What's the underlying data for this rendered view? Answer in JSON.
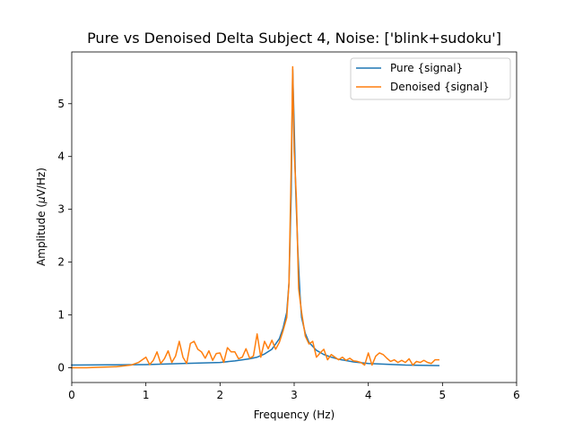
{
  "chart_data": {
    "type": "line",
    "title": "Pure vs Denoised Delta Subject 4, Noise: ['blink+sudoku']",
    "xlabel": "Frequency (Hz)",
    "ylabel_pre": "Amplitude (",
    "ylabel_mu": "μ",
    "ylabel_post": "V/Hz)",
    "xlim": [
      0,
      6
    ],
    "ylim": [
      -0.28,
      5.98
    ],
    "xticks": [
      0,
      1,
      2,
      3,
      4,
      5,
      6
    ],
    "xtick_labels": [
      "0",
      "1",
      "2",
      "3",
      "4",
      "5",
      "6"
    ],
    "yticks": [
      0,
      1,
      2,
      3,
      4,
      5
    ],
    "ytick_labels": [
      "0",
      "1",
      "2",
      "3",
      "4",
      "5"
    ],
    "grid": false,
    "legend_position": "top-right",
    "series": [
      {
        "name": "Pure {signal}",
        "color": "#1f77b4",
        "x": [
          0.0,
          0.5,
          1.0,
          1.5,
          2.0,
          2.2,
          2.4,
          2.5,
          2.6,
          2.7,
          2.8,
          2.85,
          2.9,
          2.93,
          2.96,
          2.98,
          3.0,
          3.02,
          3.05,
          3.08,
          3.1,
          3.15,
          3.2,
          3.3,
          3.4,
          3.5,
          3.6,
          3.8,
          4.0,
          4.5,
          4.95
        ],
        "y": [
          0.05,
          0.055,
          0.06,
          0.08,
          0.1,
          0.13,
          0.17,
          0.2,
          0.26,
          0.35,
          0.55,
          0.75,
          1.05,
          1.6,
          3.3,
          5.65,
          4.6,
          3.4,
          2.2,
          1.35,
          0.95,
          0.65,
          0.48,
          0.33,
          0.25,
          0.2,
          0.16,
          0.11,
          0.08,
          0.05,
          0.04
        ]
      },
      {
        "name": "Denoised {signal}",
        "color": "#ff7f0e",
        "x": [
          0.0,
          0.2,
          0.4,
          0.6,
          0.8,
          0.9,
          1.0,
          1.05,
          1.1,
          1.15,
          1.2,
          1.25,
          1.3,
          1.35,
          1.4,
          1.45,
          1.5,
          1.55,
          1.6,
          1.65,
          1.7,
          1.75,
          1.8,
          1.85,
          1.9,
          1.95,
          2.0,
          2.05,
          2.1,
          2.15,
          2.2,
          2.25,
          2.3,
          2.35,
          2.4,
          2.45,
          2.5,
          2.55,
          2.6,
          2.65,
          2.7,
          2.75,
          2.8,
          2.85,
          2.9,
          2.93,
          2.96,
          2.98,
          3.0,
          3.03,
          3.06,
          3.1,
          3.15,
          3.2,
          3.25,
          3.3,
          3.35,
          3.4,
          3.45,
          3.5,
          3.55,
          3.6,
          3.65,
          3.7,
          3.75,
          3.8,
          3.85,
          3.9,
          3.95,
          4.0,
          4.05,
          4.1,
          4.15,
          4.2,
          4.25,
          4.3,
          4.35,
          4.4,
          4.45,
          4.5,
          4.55,
          4.6,
          4.65,
          4.7,
          4.75,
          4.8,
          4.85,
          4.9,
          4.95
        ],
        "y": [
          0.0,
          0.0,
          0.01,
          0.02,
          0.05,
          0.1,
          0.2,
          0.06,
          0.14,
          0.3,
          0.08,
          0.17,
          0.32,
          0.1,
          0.22,
          0.5,
          0.2,
          0.08,
          0.46,
          0.5,
          0.35,
          0.3,
          0.18,
          0.32,
          0.14,
          0.27,
          0.28,
          0.1,
          0.38,
          0.3,
          0.3,
          0.17,
          0.2,
          0.36,
          0.18,
          0.22,
          0.64,
          0.2,
          0.5,
          0.36,
          0.52,
          0.35,
          0.48,
          0.7,
          0.95,
          1.6,
          3.8,
          5.7,
          4.1,
          3.2,
          1.5,
          1.05,
          0.6,
          0.45,
          0.5,
          0.2,
          0.28,
          0.35,
          0.15,
          0.25,
          0.2,
          0.15,
          0.2,
          0.14,
          0.18,
          0.13,
          0.12,
          0.1,
          0.05,
          0.28,
          0.05,
          0.22,
          0.28,
          0.25,
          0.18,
          0.12,
          0.15,
          0.1,
          0.14,
          0.1,
          0.17,
          0.05,
          0.12,
          0.1,
          0.14,
          0.1,
          0.08,
          0.15,
          0.15
        ]
      }
    ]
  }
}
